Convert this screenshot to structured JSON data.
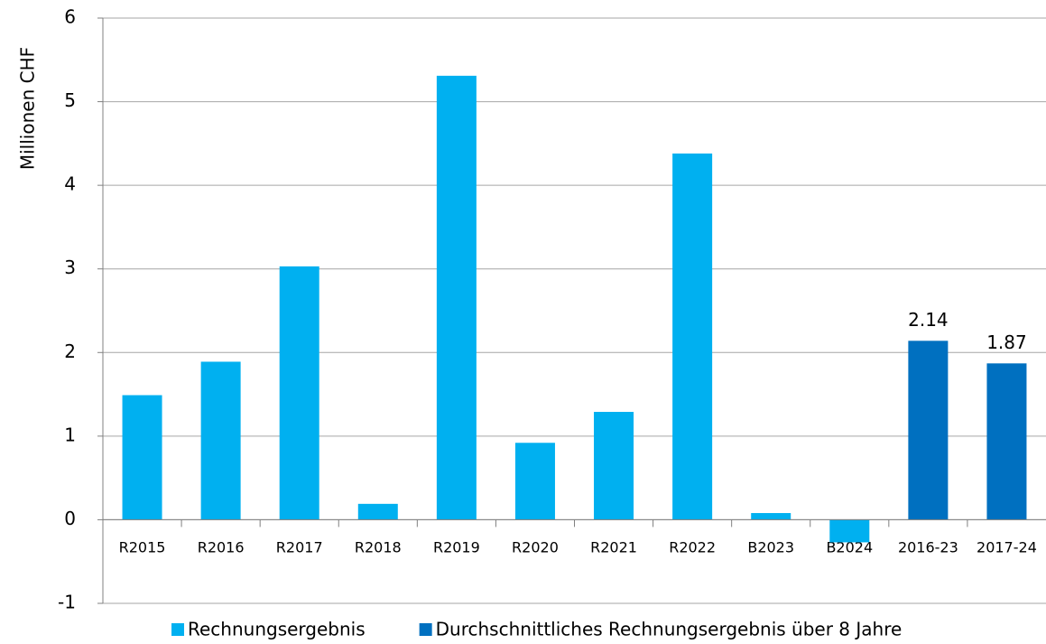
{
  "chart_data": {
    "type": "bar",
    "ylabel": "Millionen CHF",
    "categories": [
      "R2015",
      "R2016",
      "R2017",
      "R2018",
      "R2019",
      "R2020",
      "R2021",
      "R2022",
      "B2023",
      "B2024",
      "2016-23",
      "2017-24"
    ],
    "series": [
      {
        "name": "Rechnungsergebnis",
        "color": "#00b0f0",
        "values": [
          1.49,
          1.89,
          3.03,
          0.19,
          5.31,
          0.92,
          1.29,
          4.38,
          0.08,
          -0.27,
          null,
          null
        ]
      },
      {
        "name": "Durchschnittliches Rechnungsergebnis über 8 Jahre",
        "color": "#0070c0",
        "values": [
          null,
          null,
          null,
          null,
          null,
          null,
          null,
          null,
          null,
          null,
          2.14,
          1.87
        ],
        "show_values": true
      }
    ],
    "ylim": [
      -1,
      6
    ],
    "yticks": [
      -1,
      0,
      1,
      2,
      3,
      4,
      5,
      6
    ],
    "grid": true,
    "legend": "bottom"
  }
}
